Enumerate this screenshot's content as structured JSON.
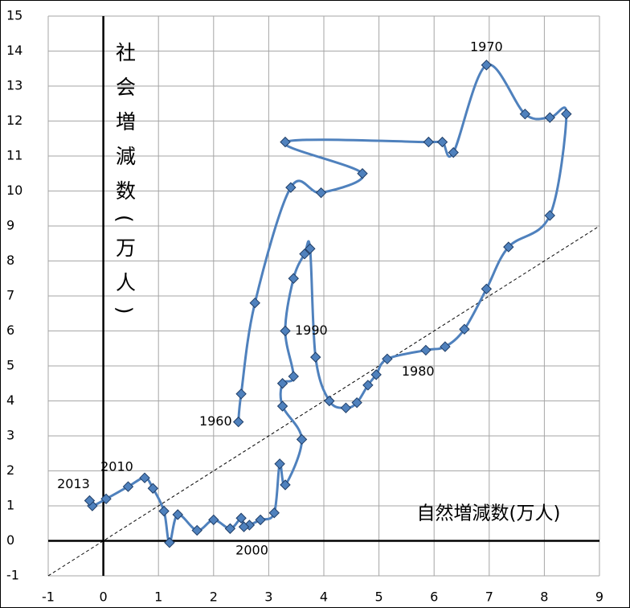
{
  "chart_data": {
    "type": "line",
    "x_label": "自然増減数(万人)",
    "y_label": "社会増減数(万人)",
    "x": [
      2.45,
      2.5,
      2.75,
      3.4,
      3.95,
      4.7,
      3.3,
      5.9,
      6.15,
      6.35,
      6.95,
      7.65,
      8.1,
      8.4,
      8.1,
      7.35,
      6.95,
      6.55,
      6.2,
      5.85,
      5.15,
      4.95,
      4.8,
      4.6,
      4.4,
      4.1,
      3.85,
      3.75,
      3.65,
      3.45,
      3.3,
      3.45,
      3.25,
      3.25,
      3.6,
      3.3,
      3.2,
      3.1,
      2.85,
      2.65,
      2.55,
      2.5,
      2.3,
      2.0,
      1.7,
      1.35,
      1.2,
      1.1,
      0.9,
      0.75,
      0.45,
      0.05,
      -0.2,
      -0.25
    ],
    "values": [
      3.4,
      4.2,
      6.8,
      10.1,
      9.95,
      10.5,
      11.4,
      11.4,
      11.4,
      11.1,
      13.6,
      12.2,
      12.1,
      12.2,
      9.3,
      8.4,
      7.2,
      6.05,
      5.55,
      5.45,
      5.2,
      4.75,
      4.45,
      3.95,
      3.8,
      4.0,
      5.25,
      8.35,
      8.2,
      7.5,
      6.0,
      4.7,
      4.5,
      3.85,
      2.9,
      1.6,
      2.2,
      0.8,
      0.6,
      0.45,
      0.4,
      0.65,
      0.35,
      0.6,
      0.3,
      0.75,
      -0.05,
      0.85,
      1.5,
      1.8,
      1.55,
      1.2,
      1.0,
      1.15
    ],
    "point_labels": [
      "1960",
      null,
      null,
      null,
      null,
      null,
      null,
      null,
      null,
      null,
      "1970",
      null,
      null,
      null,
      null,
      null,
      null,
      null,
      null,
      null,
      "1980",
      null,
      null,
      null,
      null,
      null,
      null,
      null,
      null,
      null,
      "1990",
      null,
      null,
      null,
      null,
      null,
      null,
      null,
      null,
      null,
      "2000",
      null,
      null,
      null,
      null,
      null,
      null,
      null,
      null,
      null,
      "2010",
      null,
      null,
      "2013"
    ],
    "color": "#4f81bd",
    "marker_color": "#4f81bd",
    "xlim": [
      -1,
      9
    ],
    "xticks": [
      -1,
      0,
      1,
      2,
      3,
      4,
      5,
      6,
      7,
      8,
      9
    ],
    "ylim": [
      -1,
      15
    ],
    "yticks": [
      -1,
      0,
      1,
      2,
      3,
      4,
      5,
      6,
      7,
      8,
      9,
      10,
      11,
      12,
      13,
      14,
      15
    ],
    "grid": true,
    "reference_line": {
      "slope": 1,
      "intercept": 0,
      "style": "dashed"
    }
  }
}
